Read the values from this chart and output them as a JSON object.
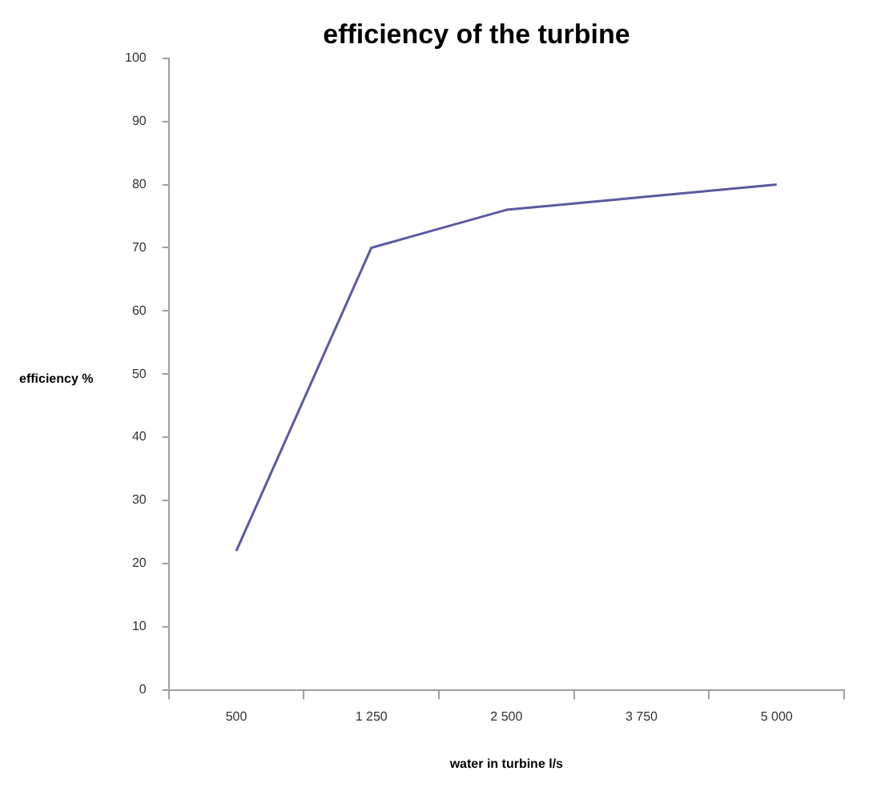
{
  "chart_data": {
    "type": "line",
    "title": "efficiency of the turbine",
    "xlabel": "water in turbine l/s",
    "ylabel": "efficiency %",
    "categories": [
      "500",
      "1 250",
      "2 500",
      "3 750",
      "5 000"
    ],
    "series": [
      {
        "color": "#5a5aa0",
        "values": [
          22,
          70,
          76,
          78,
          80
        ]
      }
    ],
    "ylim": [
      0,
      100
    ],
    "yticks": [
      0,
      10,
      20,
      30,
      40,
      50,
      60,
      70,
      80,
      90,
      100
    ],
    "grid": false,
    "legend": false,
    "marker": "none",
    "line_style": "solid"
  }
}
